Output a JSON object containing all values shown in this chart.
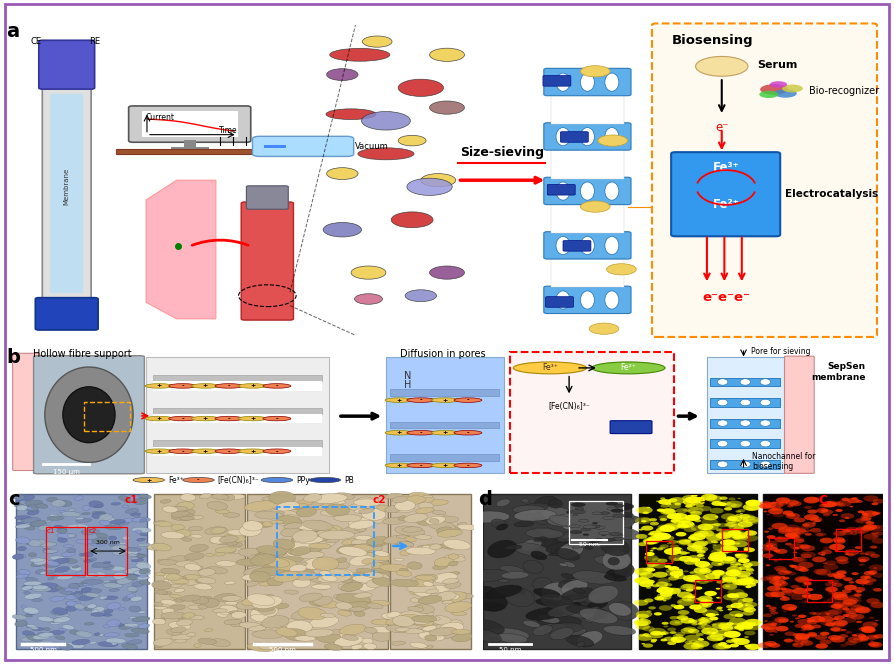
{
  "border_color": "#9b59b6",
  "bg_color": "#ffffff",
  "panel_a_label": "a",
  "panel_b_label": "b",
  "panel_c_label": "c",
  "panel_d_label": "d",
  "label_font_size": 14,
  "biosensing_title": "Biosensing",
  "serum_text": "Serum",
  "biorecog_text": "Bio-recognizer",
  "electrocatalysis_text": "Electrocatalysis",
  "size_sieving_text": "Size-sieving",
  "vacuum_text": "Vacuum",
  "current_text": "Current",
  "time_text": "Time",
  "hollow_fibre_text": "Hollow fibre support",
  "diffusion_text": "Diffusion in pores",
  "pore_sieving_text": "Pore for sieving",
  "nanochannel_text": "Nanochannel for\nbiosensing",
  "sepsen_text": "SepSen\nmembrane",
  "legend_fe3": "Fe³⁺",
  "legend_fecn": "[Fe(CN)₆]³⁻",
  "legend_ppy": "PPy",
  "legend_pb": "PB",
  "membrane_label": "Membrane",
  "ce_text": "CE",
  "re_text": "RE",
  "scale_150": "150 μm",
  "scale_300": "300 nm",
  "scale_500a": "500 nm",
  "scale_500b": "500 nm",
  "scale_50a": "50 nm",
  "scale_50b": "50 nm",
  "c1_text": "c1",
  "c2_text": "c2",
  "fe_text": "Fe",
  "c_text": "C",
  "blue_membrane": "#4da6e8",
  "dark_blue": "#2171b5",
  "orange_box": "#ff8c00",
  "red_color": "#e31a1c",
  "yellow_color": "#f0d060",
  "pink_color": "#ffb6c1",
  "light_blue": "#87ceeb"
}
